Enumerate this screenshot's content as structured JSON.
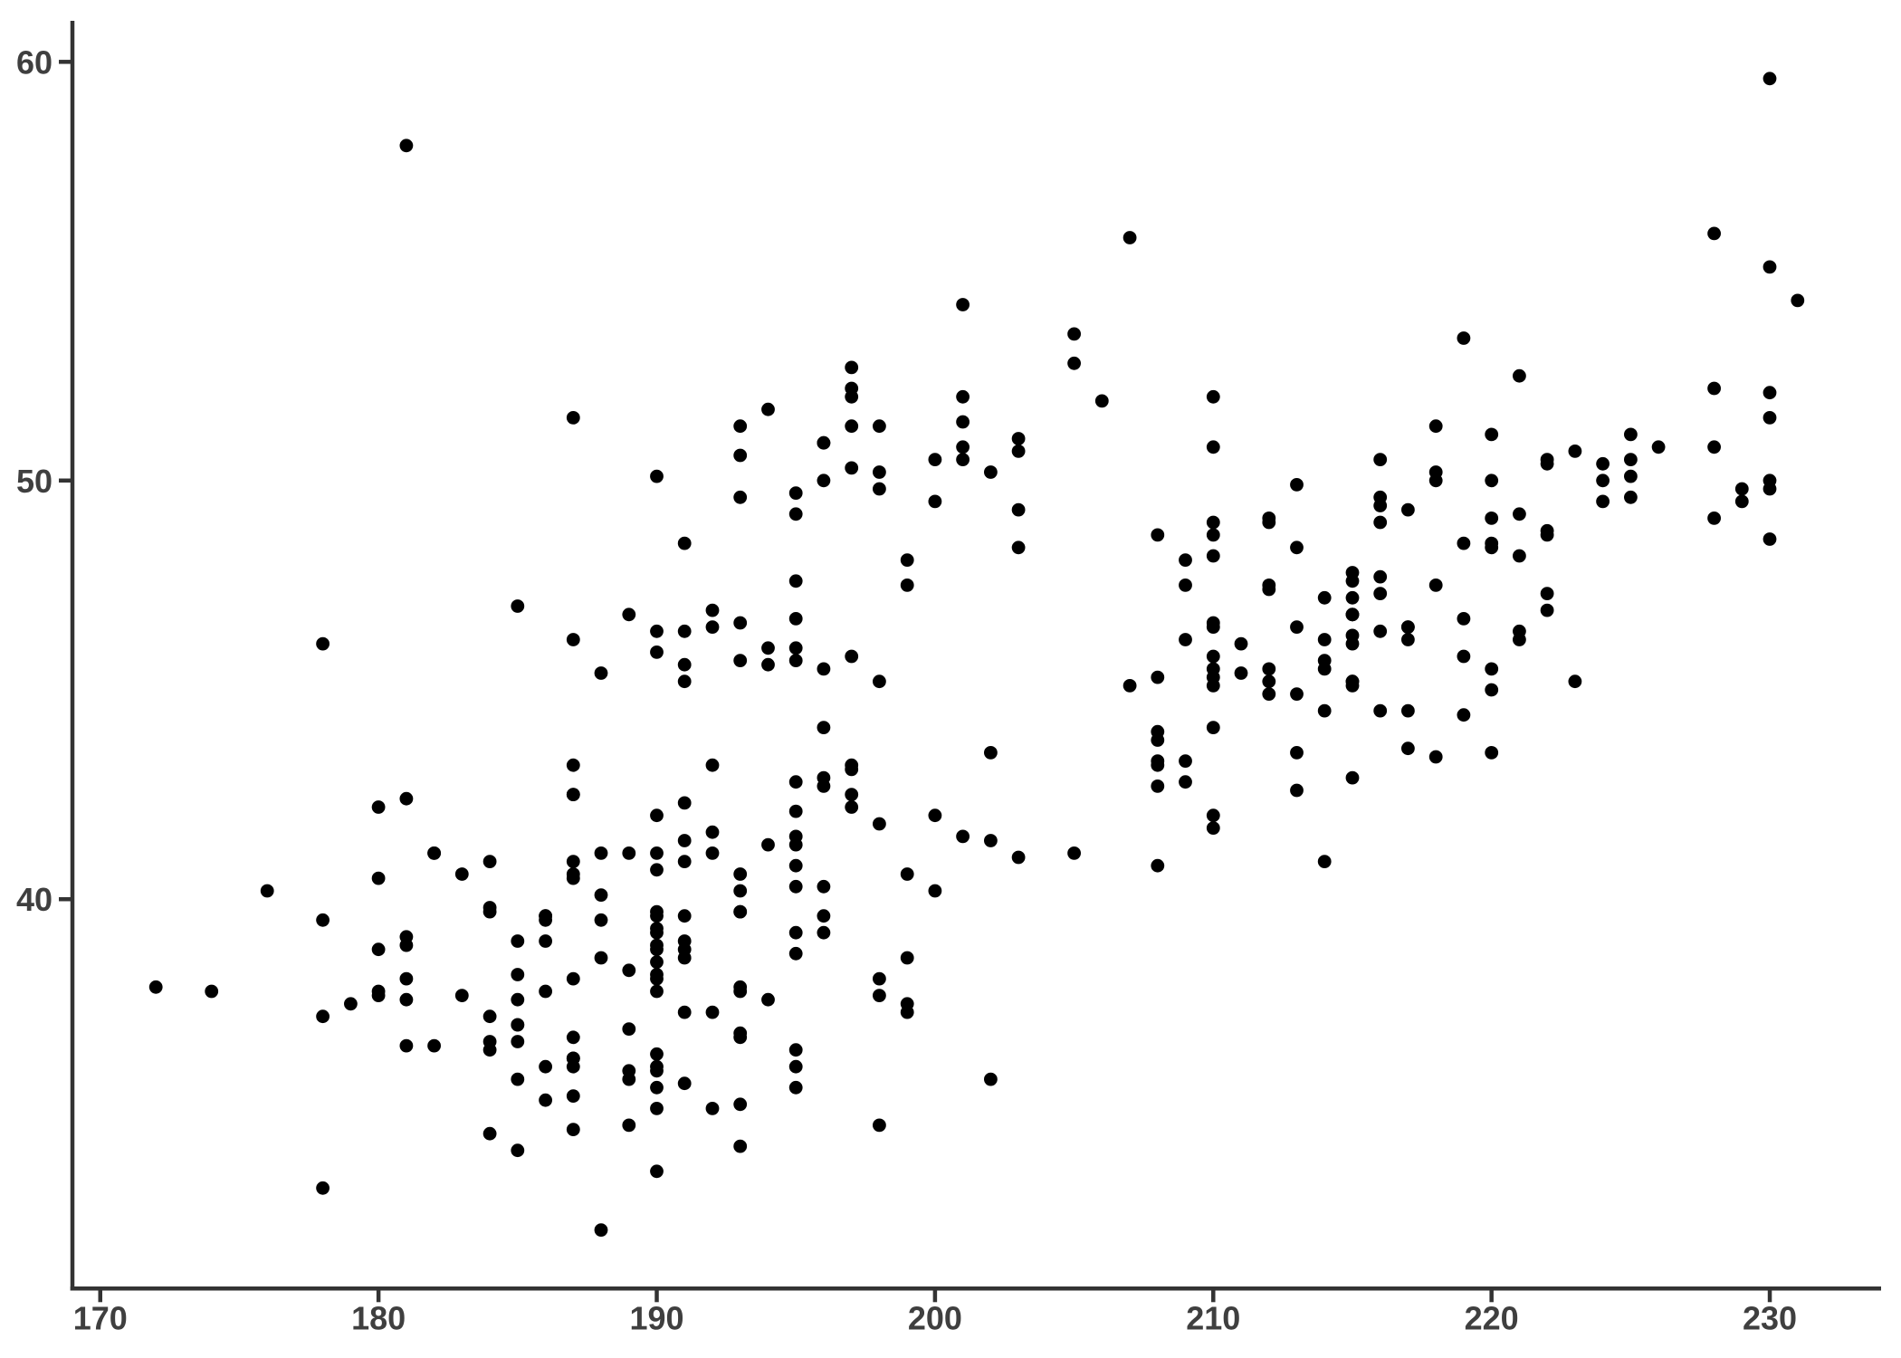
{
  "chart_data": {
    "type": "scatter",
    "title": "",
    "xlabel": "",
    "ylabel": "",
    "x_ticks": [
      170,
      180,
      190,
      200,
      210,
      220,
      230
    ],
    "y_ticks": [
      40,
      50,
      60
    ],
    "xlim": [
      169,
      234
    ],
    "ylim": [
      30.7,
      60.98
    ],
    "grid": "off",
    "legend": "none",
    "point_color": "#000000",
    "axis_color": "#333333",
    "tick_label_color": "#3f3f3f",
    "background_color": "#ffffff",
    "points": [
      [
        181,
        39.1
      ],
      [
        186,
        39.5
      ],
      [
        195,
        40.3
      ],
      [
        193,
        36.7
      ],
      [
        190,
        39.3
      ],
      [
        181,
        38.9
      ],
      [
        195,
        39.2
      ],
      [
        193,
        34.1
      ],
      [
        190,
        42.0
      ],
      [
        186,
        37.8
      ],
      [
        180,
        37.8
      ],
      [
        182,
        41.1
      ],
      [
        191,
        38.6
      ],
      [
        198,
        34.6
      ],
      [
        185,
        36.6
      ],
      [
        195,
        38.7
      ],
      [
        197,
        42.5
      ],
      [
        184,
        34.4
      ],
      [
        194,
        46.0
      ],
      [
        174,
        37.8
      ],
      [
        180,
        37.7
      ],
      [
        189,
        35.9
      ],
      [
        185,
        38.2
      ],
      [
        180,
        38.8
      ],
      [
        187,
        35.3
      ],
      [
        183,
        40.6
      ],
      [
        187,
        40.5
      ],
      [
        172,
        37.9
      ],
      [
        180,
        40.5
      ],
      [
        178,
        39.5
      ],
      [
        178,
        37.2
      ],
      [
        188,
        39.5
      ],
      [
        184,
        40.9
      ],
      [
        195,
        36.4
      ],
      [
        196,
        39.2
      ],
      [
        190,
        38.8
      ],
      [
        180,
        42.2
      ],
      [
        181,
        37.6
      ],
      [
        184,
        39.8
      ],
      [
        182,
        36.5
      ],
      [
        195,
        40.8
      ],
      [
        186,
        36.0
      ],
      [
        196,
        44.1
      ],
      [
        185,
        37.0
      ],
      [
        190,
        39.6
      ],
      [
        182,
        41.1
      ],
      [
        179,
        37.5
      ],
      [
        190,
        36.0
      ],
      [
        191,
        42.3
      ],
      [
        186,
        39.6
      ],
      [
        188,
        40.1
      ],
      [
        190,
        35.0
      ],
      [
        200,
        42.0
      ],
      [
        187,
        34.5
      ],
      [
        191,
        41.4
      ],
      [
        186,
        39.0
      ],
      [
        193,
        40.6
      ],
      [
        181,
        36.5
      ],
      [
        194,
        37.6
      ],
      [
        185,
        35.7
      ],
      [
        195,
        41.3
      ],
      [
        185,
        37.6
      ],
      [
        192,
        41.1
      ],
      [
        184,
        36.4
      ],
      [
        192,
        41.6
      ],
      [
        195,
        35.5
      ],
      [
        188,
        41.1
      ],
      [
        190,
        35.9
      ],
      [
        198,
        41.8
      ],
      [
        190,
        33.5
      ],
      [
        190,
        39.7
      ],
      [
        196,
        39.6
      ],
      [
        197,
        45.8
      ],
      [
        190,
        35.5
      ],
      [
        195,
        42.8
      ],
      [
        191,
        40.9
      ],
      [
        184,
        37.2
      ],
      [
        187,
        36.2
      ],
      [
        195,
        42.1
      ],
      [
        189,
        34.6
      ],
      [
        196,
        42.9
      ],
      [
        187,
        36.7
      ],
      [
        193,
        35.1
      ],
      [
        191,
        37.3
      ],
      [
        194,
        41.3
      ],
      [
        190,
        36.3
      ],
      [
        189,
        36.9
      ],
      [
        189,
        38.3
      ],
      [
        190,
        38.9
      ],
      [
        202,
        35.7
      ],
      [
        205,
        41.1
      ],
      [
        185,
        34.0
      ],
      [
        186,
        39.6
      ],
      [
        187,
        36.2
      ],
      [
        208,
        40.8
      ],
      [
        190,
        38.1
      ],
      [
        196,
        40.3
      ],
      [
        178,
        33.1
      ],
      [
        192,
        43.2
      ],
      [
        192,
        35.0
      ],
      [
        203,
        41.0
      ],
      [
        183,
        37.7
      ],
      [
        190,
        37.8
      ],
      [
        193,
        37.9
      ],
      [
        184,
        39.7
      ],
      [
        199,
        38.6
      ],
      [
        190,
        38.2
      ],
      [
        181,
        38.1
      ],
      [
        197,
        43.2
      ],
      [
        198,
        38.1
      ],
      [
        191,
        45.6
      ],
      [
        193,
        39.7
      ],
      [
        197,
        42.2
      ],
      [
        191,
        39.6
      ],
      [
        196,
        42.7
      ],
      [
        188,
        38.6
      ],
      [
        199,
        37.3
      ],
      [
        189,
        35.7
      ],
      [
        189,
        41.1
      ],
      [
        187,
        36.2
      ],
      [
        198,
        37.7
      ],
      [
        176,
        40.2
      ],
      [
        202,
        41.4
      ],
      [
        186,
        35.2
      ],
      [
        199,
        40.6
      ],
      [
        191,
        38.8
      ],
      [
        195,
        41.5
      ],
      [
        191,
        39.0
      ],
      [
        210,
        44.1
      ],
      [
        190,
        38.5
      ],
      [
        197,
        43.1
      ],
      [
        193,
        36.8
      ],
      [
        199,
        37.5
      ],
      [
        187,
        38.1
      ],
      [
        190,
        41.1
      ],
      [
        191,
        35.6
      ],
      [
        200,
        40.2
      ],
      [
        185,
        37.0
      ],
      [
        193,
        39.7
      ],
      [
        193,
        40.2
      ],
      [
        187,
        40.6
      ],
      [
        188,
        32.1
      ],
      [
        190,
        40.7
      ],
      [
        192,
        37.3
      ],
      [
        185,
        39.0
      ],
      [
        190,
        39.2
      ],
      [
        184,
        36.6
      ],
      [
        195,
        36.0
      ],
      [
        193,
        37.8
      ],
      [
        187,
        36.0
      ],
      [
        201,
        41.5
      ],
      [
        192,
        46.5
      ],
      [
        196,
        50.0
      ],
      [
        193,
        51.3
      ],
      [
        188,
        45.4
      ],
      [
        197,
        52.7
      ],
      [
        198,
        45.2
      ],
      [
        178,
        46.1
      ],
      [
        197,
        51.3
      ],
      [
        195,
        46.0
      ],
      [
        198,
        51.3
      ],
      [
        193,
        46.6
      ],
      [
        194,
        51.7
      ],
      [
        185,
        47.0
      ],
      [
        201,
        52.0
      ],
      [
        190,
        45.9
      ],
      [
        201,
        50.5
      ],
      [
        197,
        50.3
      ],
      [
        181,
        58.0
      ],
      [
        190,
        46.4
      ],
      [
        195,
        49.2
      ],
      [
        181,
        42.4
      ],
      [
        191,
        48.5
      ],
      [
        187,
        43.2
      ],
      [
        193,
        50.6
      ],
      [
        195,
        46.7
      ],
      [
        197,
        52.0
      ],
      [
        200,
        50.5
      ],
      [
        200,
        49.5
      ],
      [
        191,
        46.4
      ],
      [
        205,
        52.8
      ],
      [
        187,
        40.9
      ],
      [
        201,
        54.2
      ],
      [
        187,
        42.5
      ],
      [
        203,
        51.0
      ],
      [
        195,
        49.7
      ],
      [
        199,
        47.5
      ],
      [
        195,
        47.6
      ],
      [
        210,
        52.0
      ],
      [
        192,
        46.9
      ],
      [
        205,
        53.5
      ],
      [
        210,
        49.0
      ],
      [
        187,
        46.2
      ],
      [
        196,
        50.9
      ],
      [
        196,
        45.5
      ],
      [
        196,
        50.9
      ],
      [
        201,
        50.8
      ],
      [
        190,
        50.1
      ],
      [
        212,
        49.0
      ],
      [
        187,
        51.5
      ],
      [
        198,
        49.8
      ],
      [
        199,
        48.1
      ],
      [
        201,
        51.4
      ],
      [
        193,
        45.7
      ],
      [
        203,
        50.7
      ],
      [
        187,
        42.5
      ],
      [
        197,
        52.2
      ],
      [
        191,
        45.2
      ],
      [
        203,
        49.3
      ],
      [
        202,
        50.2
      ],
      [
        194,
        45.6
      ],
      [
        206,
        51.9
      ],
      [
        189,
        46.8
      ],
      [
        195,
        45.7
      ],
      [
        207,
        55.8
      ],
      [
        202,
        43.5
      ],
      [
        193,
        49.6
      ],
      [
        210,
        50.8
      ],
      [
        198,
        50.2
      ],
      [
        211,
        46.1
      ],
      [
        230,
        50.0
      ],
      [
        210,
        48.7
      ],
      [
        218,
        50.0
      ],
      [
        215,
        47.6
      ],
      [
        210,
        46.5
      ],
      [
        211,
        45.4
      ],
      [
        219,
        46.7
      ],
      [
        209,
        43.3
      ],
      [
        215,
        46.8
      ],
      [
        214,
        40.9
      ],
      [
        216,
        49.0
      ],
      [
        214,
        45.5
      ],
      [
        213,
        48.4
      ],
      [
        210,
        45.8
      ],
      [
        217,
        49.3
      ],
      [
        210,
        42.0
      ],
      [
        221,
        49.2
      ],
      [
        209,
        46.2
      ],
      [
        222,
        48.7
      ],
      [
        218,
        50.2
      ],
      [
        215,
        45.1
      ],
      [
        213,
        46.5
      ],
      [
        215,
        46.3
      ],
      [
        215,
        42.9
      ],
      [
        215,
        46.1
      ],
      [
        216,
        44.5
      ],
      [
        215,
        47.8
      ],
      [
        210,
        48.2
      ],
      [
        220,
        50.0
      ],
      [
        222,
        47.3
      ],
      [
        209,
        42.8
      ],
      [
        207,
        45.1
      ],
      [
        230,
        59.6
      ],
      [
        220,
        49.1
      ],
      [
        220,
        48.4
      ],
      [
        213,
        42.6
      ],
      [
        219,
        44.4
      ],
      [
        208,
        44.0
      ],
      [
        208,
        48.7
      ],
      [
        208,
        42.7
      ],
      [
        225,
        49.6
      ],
      [
        210,
        45.3
      ],
      [
        216,
        49.6
      ],
      [
        222,
        50.5
      ],
      [
        217,
        43.6
      ],
      [
        210,
        45.5
      ],
      [
        225,
        50.5
      ],
      [
        213,
        44.9
      ],
      [
        215,
        45.2
      ],
      [
        210,
        46.6
      ],
      [
        220,
        48.5
      ],
      [
        210,
        45.1
      ],
      [
        225,
        50.1
      ],
      [
        217,
        46.5
      ],
      [
        220,
        45.0
      ],
      [
        208,
        43.8
      ],
      [
        220,
        45.5
      ],
      [
        208,
        43.2
      ],
      [
        224,
        50.4
      ],
      [
        208,
        45.3
      ],
      [
        221,
        46.2
      ],
      [
        214,
        45.7
      ],
      [
        231,
        54.3
      ],
      [
        219,
        45.8
      ],
      [
        230,
        49.8
      ],
      [
        214,
        46.2
      ],
      [
        229,
        49.5
      ],
      [
        220,
        43.5
      ],
      [
        223,
        50.7
      ],
      [
        216,
        47.7
      ],
      [
        221,
        46.4
      ],
      [
        221,
        48.2
      ],
      [
        217,
        46.5
      ],
      [
        216,
        46.4
      ],
      [
        230,
        48.6
      ],
      [
        209,
        47.5
      ],
      [
        220,
        51.1
      ],
      [
        215,
        45.2
      ],
      [
        223,
        45.2
      ],
      [
        212,
        49.1
      ],
      [
        221,
        52.5
      ],
      [
        212,
        47.4
      ],
      [
        224,
        50.0
      ],
      [
        212,
        44.9
      ],
      [
        228,
        50.8
      ],
      [
        218,
        43.4
      ],
      [
        218,
        51.3
      ],
      [
        212,
        47.5
      ],
      [
        230,
        52.1
      ],
      [
        218,
        47.5
      ],
      [
        228,
        52.2
      ],
      [
        212,
        45.5
      ],
      [
        224,
        49.5
      ],
      [
        214,
        44.5
      ],
      [
        226,
        50.8
      ],
      [
        216,
        49.4
      ],
      [
        222,
        46.9
      ],
      [
        203,
        48.4
      ],
      [
        225,
        51.1
      ],
      [
        219,
        48.5
      ],
      [
        228,
        55.9
      ],
      [
        215,
        47.2
      ],
      [
        228,
        49.1
      ],
      [
        216,
        47.3
      ],
      [
        215,
        46.8
      ],
      [
        210,
        41.7
      ],
      [
        219,
        53.4
      ],
      [
        208,
        43.3
      ],
      [
        209,
        48.1
      ],
      [
        216,
        50.5
      ],
      [
        229,
        49.8
      ],
      [
        213,
        43.5
      ],
      [
        230,
        51.5
      ],
      [
        217,
        46.2
      ],
      [
        230,
        55.1
      ],
      [
        217,
        44.5
      ],
      [
        222,
        48.8
      ],
      [
        214,
        47.2
      ],
      [
        215,
        46.8
      ],
      [
        222,
        50.4
      ],
      [
        212,
        45.2
      ],
      [
        213,
        49.9
      ]
    ]
  }
}
